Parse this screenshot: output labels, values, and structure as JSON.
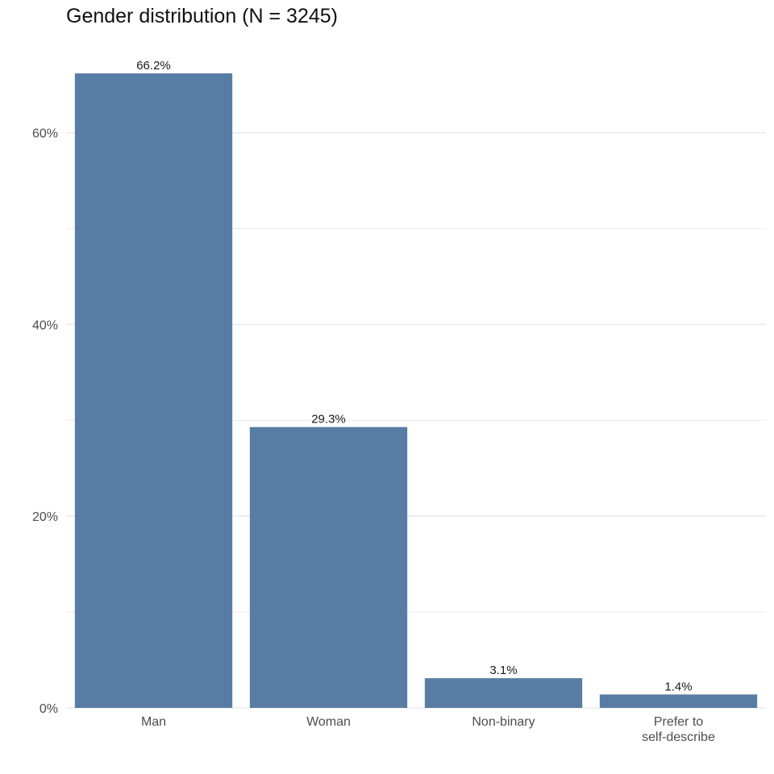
{
  "chart_data": {
    "type": "bar",
    "title": "Gender distribution (N = 3245)",
    "xlabel": "",
    "ylabel": "",
    "categories": [
      [
        "Man"
      ],
      [
        "Woman"
      ],
      [
        "Non-binary"
      ],
      [
        "Prefer to",
        "self-describe"
      ]
    ],
    "values": [
      66.2,
      29.3,
      3.1,
      1.4
    ],
    "value_labels": [
      "66.2%",
      "29.3%",
      "3.1%",
      "1.4%"
    ],
    "yticks": [
      0,
      20,
      40,
      60
    ],
    "ytick_labels": [
      "0%",
      "20%",
      "40%",
      "60%"
    ],
    "minor_yticks": [
      10,
      30,
      50
    ],
    "ylim": [
      0,
      66.2
    ],
    "grid": true,
    "bar_color": "#4a729c",
    "grid_color": "#ebebeb"
  }
}
